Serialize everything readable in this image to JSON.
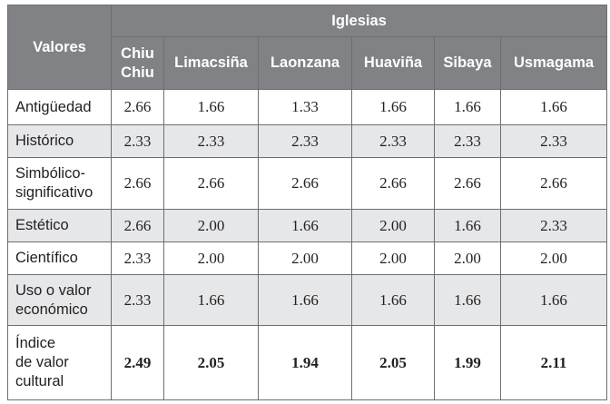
{
  "table": {
    "row_header": "Valores",
    "group_header": "Iglesias",
    "columns": [
      "Chiu\nChiu",
      "Limacsiña",
      "Laonzana",
      "Huaviña",
      "Sibaya",
      "Usmagama"
    ],
    "rows": [
      [
        "Antigüedad",
        "2.66",
        "1.66",
        "1.33",
        "1.66",
        "1.66",
        "1.66"
      ],
      [
        "Histórico",
        "2.33",
        "2.33",
        "2.33",
        "2.33",
        "2.33",
        "2.33"
      ],
      [
        "Simbólico-\nsignificativo",
        "2.66",
        "2.66",
        "2.66",
        "2.66",
        "2.66",
        "2.66"
      ],
      [
        "Estético",
        "2.66",
        "2.00",
        "1.66",
        "2.00",
        "1.66",
        "2.33"
      ],
      [
        "Científico",
        "2.33",
        "2.00",
        "2.00",
        "2.00",
        "2.00",
        "2.00"
      ],
      [
        "Uso o valor\neconómico",
        "2.33",
        "1.66",
        "1.66",
        "1.66",
        "1.66",
        "1.66"
      ],
      [
        "Índice\nde valor\ncultural",
        "2.49",
        "2.05",
        "1.94",
        "2.05",
        "1.99",
        "2.11"
      ]
    ]
  }
}
